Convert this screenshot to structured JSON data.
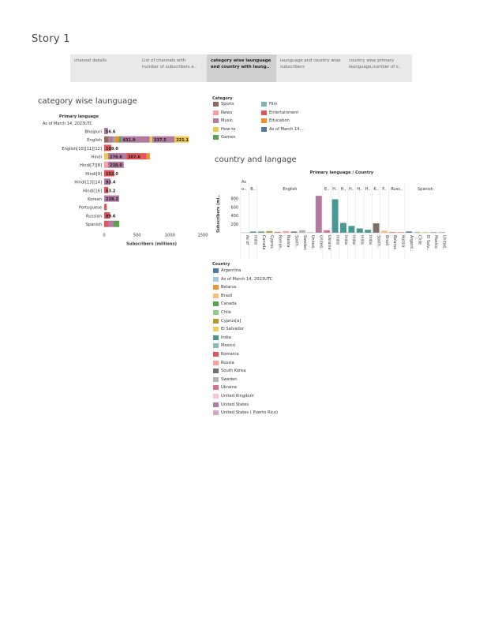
{
  "story": {
    "title": "Story 1"
  },
  "tabs": [
    {
      "label": "channel details",
      "active": false
    },
    {
      "label": "List of channels with number of subscribers a..",
      "active": false
    },
    {
      "label": "category wise launguage and country with laung..",
      "active": true
    },
    {
      "label": "launguage and country wise subscribers",
      "active": false
    },
    {
      "label": "country wise primary launguage,number of s..",
      "active": false
    }
  ],
  "category_legend": {
    "title": "Category",
    "items": [
      {
        "label": "Sports",
        "color": "#8c6d5c"
      },
      {
        "label": "Film",
        "color": "#76b7b2"
      },
      {
        "label": "News",
        "color": "#ff9da7"
      },
      {
        "label": "Entertainment",
        "color": "#e15759"
      },
      {
        "label": "Music",
        "color": "#b07aa1"
      },
      {
        "label": "Education",
        "color": "#f28e2b"
      },
      {
        "label": "How-to",
        "color": "#edc948"
      },
      {
        "label": "As of March 14, ..",
        "color": "#4e79a7"
      },
      {
        "label": "Games",
        "color": "#59a14f"
      }
    ]
  },
  "country_legend": {
    "title": "Country",
    "items": [
      {
        "label": "Argentina",
        "color": "#4e79a7"
      },
      {
        "label": "As of March 14, 2023UTC",
        "color": "#a0cbe8"
      },
      {
        "label": "Belarus",
        "color": "#f28e2b"
      },
      {
        "label": "Brazil",
        "color": "#ffbe7d"
      },
      {
        "label": "Canada",
        "color": "#59a14f"
      },
      {
        "label": "Chile",
        "color": "#8cd17d"
      },
      {
        "label": "Cyprus[a]",
        "color": "#b6992d"
      },
      {
        "label": "El Salvador",
        "color": "#f1ce63"
      },
      {
        "label": "India",
        "color": "#499894"
      },
      {
        "label": "Mexico",
        "color": "#86bcb6"
      },
      {
        "label": "Romania",
        "color": "#e15759"
      },
      {
        "label": "Russia",
        "color": "#ff9d9a"
      },
      {
        "label": "South Korea",
        "color": "#79706e"
      },
      {
        "label": "Sweden",
        "color": "#bab0ac"
      },
      {
        "label": "Ukraine",
        "color": "#d37295"
      },
      {
        "label": "United Kingdom",
        "color": "#fabfd2"
      },
      {
        "label": "United States",
        "color": "#b07aa1"
      },
      {
        "label": "United States ( Puerto Rico)",
        "color": "#d4a6c8"
      }
    ]
  },
  "chart_data": [
    {
      "type": "bar",
      "orientation": "horizontal",
      "stacked": true,
      "title": "category wise launguage",
      "header": "Primary language",
      "subheader": "As of March 14, 2023UTC",
      "xlabel": "Subscribers (millions)",
      "xlim": [
        0,
        1500
      ],
      "xticks": [
        0,
        500,
        1000,
        1500
      ],
      "categories": [
        "Bhojpuri",
        "English",
        "English[10][11][12]",
        "Hindi",
        "Hindi[7][8]",
        "Hindi[9]",
        "Hindi[13][14]",
        "Hindi[16]",
        "Korean",
        "Portuguese",
        "Russian",
        "Spanish"
      ],
      "rows": [
        {
          "category": "Bhojpuri",
          "segments": [
            {
              "category": "Music",
              "value": 56.6,
              "label": "56.6"
            }
          ]
        },
        {
          "category": "English",
          "segments": [
            {
              "category": "Sports",
              "value": 60,
              "label": ""
            },
            {
              "category": "Music",
              "value": 80,
              "label": ""
            },
            {
              "category": "Film",
              "value": 20,
              "label": ""
            },
            {
              "category": "Education",
              "value": 60,
              "label": ""
            },
            {
              "category": "Games",
              "value": 40,
              "label": ""
            },
            {
              "category": "Music",
              "value": 431.9,
              "label": "431.9"
            },
            {
              "category": "How-to",
              "value": 40,
              "label": ""
            },
            {
              "category": "Music",
              "value": 337.5,
              "label": "337.5"
            },
            {
              "category": "How-to",
              "value": 221.1,
              "label": "221.1"
            }
          ]
        },
        {
          "category": "English[10][11][12]",
          "segments": [
            {
              "category": "Entertainment",
              "value": 109.0,
              "label": "109.0"
            }
          ]
        },
        {
          "category": "Hindi",
          "segments": [
            {
              "category": "How-to",
              "value": 60,
              "label": ""
            },
            {
              "category": "Music",
              "value": 276.6,
              "label": "276.6"
            },
            {
              "category": "Entertainment",
              "value": 307.6,
              "label": "307.6"
            },
            {
              "category": "Education",
              "value": 50,
              "label": ""
            }
          ]
        },
        {
          "category": "Hindi[7][8]",
          "segments": [
            {
              "category": "News",
              "value": 60,
              "label": ""
            },
            {
              "category": "Music",
              "value": 238.0,
              "label": "238.0"
            }
          ]
        },
        {
          "category": "Hindi[9]",
          "segments": [
            {
              "category": "Entertainment",
              "value": 153.0,
              "label": "153.0"
            }
          ]
        },
        {
          "category": "Hindi[13][14]",
          "segments": [
            {
              "category": "Music",
              "value": 93.4,
              "label": "93.4"
            }
          ]
        },
        {
          "category": "Hindi[16]",
          "segments": [
            {
              "category": "Entertainment",
              "value": 63.2,
              "label": "63.2"
            }
          ]
        },
        {
          "category": "Korean",
          "segments": [
            {
              "category": "Music",
              "value": 228.2,
              "label": "228.2"
            }
          ]
        },
        {
          "category": "Portuguese",
          "segments": [
            {
              "category": "Entertainment",
              "value": 40,
              "label": ""
            }
          ]
        },
        {
          "category": "Russian",
          "segments": [
            {
              "category": "Entertainment",
              "value": 89.6,
              "label": "89.6"
            }
          ]
        },
        {
          "category": "Spanish",
          "segments": [
            {
              "category": "Entertainment",
              "value": 60,
              "label": ""
            },
            {
              "category": "Music",
              "value": 90,
              "label": ""
            },
            {
              "category": "Games",
              "value": 80,
              "label": ""
            }
          ]
        }
      ]
    },
    {
      "type": "bar",
      "orientation": "vertical",
      "title": "country and langage",
      "header": "Primary language  /  Country",
      "ylabel": "Subscribers (mi..",
      "ylim": [
        0,
        900
      ],
      "yticks": [
        200,
        400,
        600,
        800
      ],
      "groups": [
        {
          "label": "As\no..",
          "bars": [
            {
              "country": "As of March 14, 2023UTC",
              "label": "As of"
            }
          ]
        },
        {
          "label": "B..",
          "bars": [
            {
              "country": "India",
              "label": "India"
            }
          ]
        },
        {
          "label": "English",
          "bars": [
            {
              "country": "Canada",
              "label": "Canada"
            },
            {
              "country": "Cyprus[a]",
              "label": "Cyprus"
            },
            {
              "country": "Romania",
              "label": "Roman.."
            },
            {
              "country": "Russia",
              "label": "Russia"
            },
            {
              "country": "South Korea",
              "label": "South.."
            },
            {
              "country": "Sweden",
              "label": "Sweden"
            },
            {
              "country": "United Kingdom",
              "label": "United.."
            },
            {
              "country": "United States",
              "label": "United.."
            }
          ]
        },
        {
          "label": "E..",
          "bars": [
            {
              "country": "Ukraine",
              "label": "Ukraine"
            }
          ]
        },
        {
          "label": "H..",
          "bars": [
            {
              "country": "India",
              "label": "India"
            }
          ]
        },
        {
          "label": "H..",
          "bars": [
            {
              "country": "India",
              "label": "India"
            }
          ]
        },
        {
          "label": "H..",
          "bars": [
            {
              "country": "India",
              "label": "India"
            }
          ]
        },
        {
          "label": "H..",
          "bars": [
            {
              "country": "India",
              "label": "India"
            }
          ]
        },
        {
          "label": "H..",
          "bars": [
            {
              "country": "India",
              "label": "India"
            }
          ]
        },
        {
          "label": "K..",
          "bars": [
            {
              "country": "South Korea",
              "label": "South.."
            }
          ]
        },
        {
          "label": "P..",
          "bars": [
            {
              "country": "Brazil",
              "label": "Brazil"
            }
          ]
        },
        {
          "label": "Russ..",
          "bars": [
            {
              "country": "Belarus",
              "label": "Belarus"
            },
            {
              "country": "Russia",
              "label": "Russia"
            }
          ]
        },
        {
          "label": "Spanish",
          "bars": [
            {
              "country": "Argentina",
              "label": "Argenti.."
            },
            {
              "country": "Chile",
              "label": "Chile"
            },
            {
              "country": "El Salvador",
              "label": "El Salv.."
            },
            {
              "country": "Mexico",
              "label": "Mexico"
            },
            {
              "country": "United States ( Puerto Rico)",
              "label": "United.."
            }
          ]
        }
      ],
      "values": [
        10,
        30,
        30,
        40,
        20,
        40,
        30,
        60,
        20,
        860,
        60,
        780,
        230,
        160,
        100,
        70,
        220,
        50,
        20,
        20,
        30,
        20,
        20,
        20,
        20
      ]
    }
  ]
}
